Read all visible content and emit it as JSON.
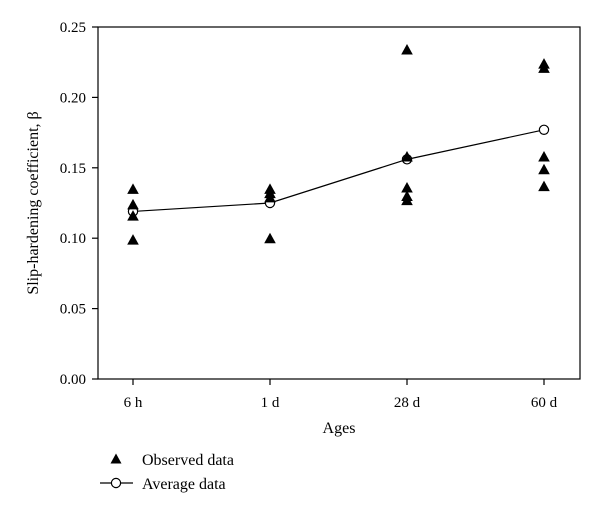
{
  "chart_data": {
    "type": "scatter",
    "xlabel": "Ages",
    "ylabel": "Slip-hardening coefficient, β",
    "categories": [
      "6 h",
      "1 d",
      "28 d",
      "60 d"
    ],
    "ylim": [
      0.0,
      0.25
    ],
    "yticks": [
      "0.00",
      "0.05",
      "0.10",
      "0.15",
      "0.20",
      "0.25"
    ],
    "grid": false,
    "legend_position": "bottom-left",
    "series": [
      {
        "name": "Observed data",
        "marker": "filled-triangle",
        "color": "#000000",
        "points": [
          {
            "x": "6 h",
            "y": 0.135
          },
          {
            "x": "6 h",
            "y": 0.124
          },
          {
            "x": "6 h",
            "y": 0.116
          },
          {
            "x": "6 h",
            "y": 0.099
          },
          {
            "x": "1 d",
            "y": 0.135
          },
          {
            "x": "1 d",
            "y": 0.132
          },
          {
            "x": "1 d",
            "y": 0.129
          },
          {
            "x": "1 d",
            "y": 0.1
          },
          {
            "x": "28 d",
            "y": 0.234
          },
          {
            "x": "28 d",
            "y": 0.158
          },
          {
            "x": "28 d",
            "y": 0.136
          },
          {
            "x": "28 d",
            "y": 0.13
          },
          {
            "x": "28 d",
            "y": 0.127
          },
          {
            "x": "60 d",
            "y": 0.224
          },
          {
            "x": "60 d",
            "y": 0.221
          },
          {
            "x": "60 d",
            "y": 0.158
          },
          {
            "x": "60 d",
            "y": 0.149
          },
          {
            "x": "60 d",
            "y": 0.137
          }
        ]
      },
      {
        "name": "Average data",
        "marker": "open-circle-line",
        "color": "#000000",
        "points": [
          {
            "x": "6 h",
            "y": 0.119
          },
          {
            "x": "1 d",
            "y": 0.125
          },
          {
            "x": "28 d",
            "y": 0.156
          },
          {
            "x": "60 d",
            "y": 0.177
          }
        ]
      }
    ]
  }
}
